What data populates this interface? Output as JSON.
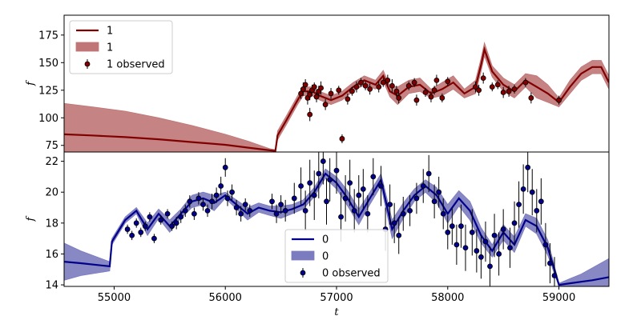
{
  "chart_data": [
    {
      "type": "line",
      "xlabel": "",
      "ylabel": "f",
      "xlim": [
        54550,
        59450
      ],
      "ylim": [
        69,
        193
      ],
      "yticks": [
        75,
        100,
        125,
        150,
        175
      ],
      "legend_position": "top-left",
      "series": [
        {
          "name": "1",
          "kind": "line",
          "color": "#800000",
          "x": [
            54550,
            54800,
            55100,
            55400,
            55700,
            56000,
            56200,
            56400,
            56450,
            56470,
            56550,
            56650,
            56700,
            56780,
            56850,
            56950,
            57050,
            57150,
            57250,
            57350,
            57420,
            57480,
            57550,
            57650,
            57750,
            57850,
            57950,
            58050,
            58150,
            58250,
            58300,
            58330,
            58400,
            58500,
            58600,
            58700,
            58800,
            58900,
            59000,
            59100,
            59200,
            59300,
            59380,
            59450
          ],
          "y": [
            85,
            84,
            82.5,
            80.5,
            78,
            75.5,
            73,
            70.5,
            70,
            84,
            98,
            116,
            124,
            124,
            120,
            116,
            120,
            128,
            134,
            130,
            138,
            124,
            120,
            128,
            130,
            122,
            126,
            132,
            122,
            128,
            148,
            162,
            142,
            130,
            124,
            134,
            128,
            122,
            114,
            128,
            140,
            146,
            146,
            132
          ]
        },
        {
          "name": "1",
          "kind": "band",
          "color": "#c07676",
          "x": [
            54550,
            54800,
            55100,
            55400,
            55700,
            56000,
            56200,
            56400,
            56450,
            56470,
            56550,
            56650,
            56700,
            56780,
            56850,
            56950,
            57050,
            57150,
            57250,
            57350,
            57420,
            57480,
            57550,
            57650,
            57750,
            57850,
            57950,
            58050,
            58150,
            58250,
            58300,
            58330,
            58400,
            58500,
            58600,
            58700,
            58800,
            58900,
            59000,
            59100,
            59200,
            59300,
            59380,
            59450
          ],
          "y_low": [
            57,
            62,
            64,
            65,
            66,
            67,
            68,
            69,
            69,
            80,
            94,
            112,
            120,
            120,
            116,
            112,
            116,
            124,
            130,
            126,
            133,
            119,
            112,
            122,
            124,
            118,
            120,
            126,
            118,
            122,
            142,
            156,
            137,
            124,
            118,
            128,
            118,
            114,
            110,
            122,
            134,
            140,
            140,
            126
          ],
          "y_high": [
            113,
            110,
            106,
            100,
            93,
            85,
            79,
            72,
            71,
            88,
            102,
            120,
            128,
            128,
            124,
            120,
            124,
            132,
            138,
            134,
            143,
            129,
            128,
            134,
            136,
            126,
            132,
            138,
            126,
            134,
            154,
            168,
            147,
            136,
            130,
            140,
            138,
            130,
            118,
            134,
            146,
            152,
            152,
            138
          ]
        },
        {
          "name": "1 observed",
          "kind": "points",
          "color": "#800000",
          "x": [
            56680,
            56700,
            56720,
            56740,
            56760,
            56780,
            56800,
            56820,
            56840,
            56860,
            56760,
            56900,
            56950,
            57020,
            57050,
            57100,
            57140,
            57180,
            57220,
            57260,
            57300,
            57380,
            57420,
            57460,
            57500,
            57540,
            57560,
            57650,
            57700,
            57720,
            57800,
            57850,
            57880,
            57900,
            57950,
            58000,
            58250,
            58280,
            58320,
            58400,
            58450,
            58500,
            58550,
            58600,
            58700,
            58750,
            59000
          ],
          "y": [
            122,
            126,
            130,
            118,
            121,
            125,
            128,
            119,
            124,
            127,
            103,
            112,
            122,
            125,
            81,
            117,
            124,
            128,
            132,
            129,
            126,
            128,
            132,
            134,
            129,
            124,
            118,
            129,
            132,
            116,
            123,
            119,
            125,
            134,
            118,
            133,
            128,
            125,
            136,
            128,
            130,
            123,
            124,
            126,
            132,
            118,
            116
          ],
          "err": [
            5,
            6,
            5,
            6,
            5,
            5,
            4,
            5,
            5,
            6,
            6,
            5,
            5,
            4,
            4,
            5,
            4,
            5,
            4,
            4,
            5,
            5,
            4,
            5,
            6,
            5,
            5,
            4,
            4,
            5,
            4,
            5,
            4,
            5,
            4,
            4,
            5,
            5,
            5,
            4,
            4,
            5,
            5,
            4,
            4,
            5,
            4
          ]
        }
      ]
    },
    {
      "type": "line",
      "xlabel": "t",
      "ylabel": "f",
      "xlim": [
        54550,
        59450
      ],
      "ylim": [
        13.9,
        22.6
      ],
      "xticks": [
        55000,
        56000,
        57000,
        58000,
        59000
      ],
      "yticks": [
        14,
        16,
        18,
        20,
        22
      ],
      "legend_position": "bottom-center",
      "series": [
        {
          "name": "0",
          "kind": "line",
          "color": "#00008b",
          "x": [
            54550,
            54700,
            54960,
            54980,
            55100,
            55200,
            55300,
            55400,
            55500,
            55600,
            55700,
            55800,
            55900,
            56000,
            56100,
            56200,
            56300,
            56400,
            56500,
            56600,
            56700,
            56800,
            56900,
            57000,
            57100,
            57200,
            57300,
            57400,
            57500,
            57600,
            57700,
            57800,
            57900,
            58000,
            58100,
            58200,
            58300,
            58400,
            58500,
            58600,
            58700,
            58800,
            58900,
            59000,
            59100,
            59200,
            59300,
            59450
          ],
          "y": [
            15.5,
            15.4,
            15.2,
            16.8,
            18.2,
            18.8,
            17.6,
            18.6,
            17.8,
            18.6,
            19.4,
            19.6,
            19.3,
            19.8,
            19.2,
            18.6,
            19.0,
            18.8,
            18.7,
            18.9,
            19.2,
            20.0,
            21.2,
            20.6,
            19.6,
            18.4,
            19.6,
            20.8,
            17.6,
            18.8,
            19.8,
            20.4,
            19.8,
            18.6,
            19.6,
            18.8,
            17.2,
            16.2,
            17.4,
            16.6,
            18.2,
            17.8,
            16.4,
            14.0,
            14.1,
            14.2,
            14.3,
            14.5
          ]
        },
        {
          "name": "0",
          "kind": "band",
          "color": "#7b7bbf",
          "x": [
            54550,
            54700,
            54960,
            54980,
            55100,
            55200,
            55300,
            55400,
            55500,
            55600,
            55700,
            55800,
            55900,
            56000,
            56100,
            56200,
            56300,
            56400,
            56500,
            56600,
            56700,
            56800,
            56900,
            57000,
            57100,
            57200,
            57300,
            57400,
            57500,
            57600,
            57700,
            57800,
            57900,
            58000,
            58100,
            58200,
            58300,
            58400,
            58500,
            58600,
            58700,
            58800,
            58900,
            59000,
            59100,
            59200,
            59300,
            59450
          ],
          "y_low": [
            14.3,
            14.6,
            14.9,
            16.6,
            18.0,
            18.6,
            17.2,
            18.3,
            17.4,
            18.3,
            19.0,
            19.2,
            18.8,
            19.6,
            18.9,
            18.2,
            18.7,
            18.5,
            18.3,
            18.6,
            18.9,
            19.7,
            20.9,
            20.2,
            19.1,
            17.9,
            19.2,
            20.4,
            17.0,
            18.3,
            19.4,
            20.0,
            19.3,
            18.0,
            19.1,
            18.2,
            16.7,
            15.8,
            16.9,
            16.1,
            17.8,
            17.3,
            15.9,
            13.9,
            13.9,
            13.9,
            13.9,
            13.9
          ],
          "y_high": [
            16.7,
            16.2,
            15.5,
            17.0,
            18.4,
            19.0,
            18.0,
            18.9,
            18.2,
            18.9,
            19.8,
            20.0,
            19.8,
            20.0,
            19.5,
            19.0,
            19.3,
            19.1,
            19.1,
            19.2,
            19.5,
            20.3,
            21.5,
            21.0,
            20.1,
            18.9,
            20.0,
            21.2,
            18.2,
            19.3,
            20.2,
            20.8,
            20.3,
            19.2,
            20.1,
            19.4,
            17.7,
            16.6,
            17.9,
            17.1,
            18.6,
            18.3,
            16.9,
            14.1,
            14.4,
            14.7,
            15.1,
            15.7
          ]
        },
        {
          "name": "0 observed",
          "kind": "points",
          "color": "#00008b",
          "x": [
            55120,
            55160,
            55200,
            55240,
            55280,
            55320,
            55360,
            55420,
            55480,
            55520,
            55560,
            55600,
            55640,
            55680,
            55720,
            55760,
            55800,
            55840,
            55880,
            55920,
            55960,
            56000,
            56020,
            56060,
            56100,
            56140,
            56180,
            56220,
            56420,
            56460,
            56500,
            56540,
            56620,
            56680,
            56720,
            56760,
            56800,
            56840,
            56880,
            56910,
            56940,
            57000,
            57040,
            57080,
            57120,
            57160,
            57200,
            57240,
            57280,
            57330,
            57400,
            57440,
            57480,
            57520,
            57560,
            57600,
            57660,
            57720,
            57780,
            57830,
            57880,
            57920,
            57960,
            58000,
            58040,
            58080,
            58120,
            58160,
            58220,
            58260,
            58300,
            58340,
            58380,
            58420,
            58460,
            58500,
            58560,
            58600,
            58640,
            58680,
            58720,
            58760,
            58800,
            58840,
            58880,
            58920,
            58960
          ],
          "y": [
            17.6,
            17.2,
            18.0,
            17.4,
            17.8,
            18.4,
            17.0,
            18.2,
            18.6,
            17.8,
            18.0,
            18.4,
            18.8,
            19.4,
            18.6,
            19.6,
            19.2,
            18.8,
            19.4,
            19.8,
            20.4,
            21.6,
            19.6,
            20.0,
            19.0,
            18.6,
            19.2,
            18.8,
            19.4,
            18.6,
            19.2,
            18.8,
            19.6,
            20.4,
            18.8,
            20.6,
            19.8,
            21.2,
            22.0,
            19.4,
            20.8,
            21.4,
            18.4,
            19.6,
            20.6,
            18.8,
            19.8,
            20.2,
            18.6,
            21.0,
            20.4,
            17.6,
            19.2,
            18.0,
            17.2,
            18.6,
            18.8,
            19.6,
            20.4,
            21.2,
            19.4,
            20.0,
            18.6,
            17.4,
            17.8,
            16.6,
            17.8,
            16.4,
            17.4,
            16.2,
            15.8,
            16.8,
            15.2,
            17.2,
            16.0,
            17.6,
            16.4,
            18.0,
            19.2,
            20.2,
            21.6,
            20.0,
            18.8,
            19.4,
            16.6,
            15.4,
            14.6
          ],
          "err": [
            0.3,
            0.3,
            0.3,
            0.3,
            0.3,
            0.3,
            0.3,
            0.3,
            0.3,
            0.3,
            0.4,
            0.4,
            0.4,
            0.4,
            0.4,
            0.4,
            0.4,
            0.4,
            0.5,
            0.5,
            0.6,
            0.6,
            0.5,
            0.5,
            0.5,
            0.5,
            0.4,
            0.4,
            0.5,
            0.6,
            0.6,
            0.7,
            1.0,
            1.2,
            1.3,
            1.5,
            1.6,
            1.6,
            1.5,
            1.5,
            1.4,
            1.5,
            1.6,
            1.5,
            1.5,
            1.4,
            1.3,
            1.3,
            1.2,
            1.2,
            1.3,
            1.4,
            1.3,
            1.3,
            1.2,
            1.1,
            1.0,
            1.0,
            1.1,
            1.2,
            1.1,
            1.0,
            1.0,
            1.1,
            1.2,
            1.3,
            1.4,
            1.5,
            1.5,
            1.4,
            1.4,
            1.3,
            1.3,
            1.4,
            1.4,
            1.3,
            1.3,
            1.4,
            1.5,
            1.6,
            1.6,
            1.5,
            1.4,
            1.5,
            1.4,
            1.3,
            1.2
          ]
        }
      ]
    }
  ]
}
